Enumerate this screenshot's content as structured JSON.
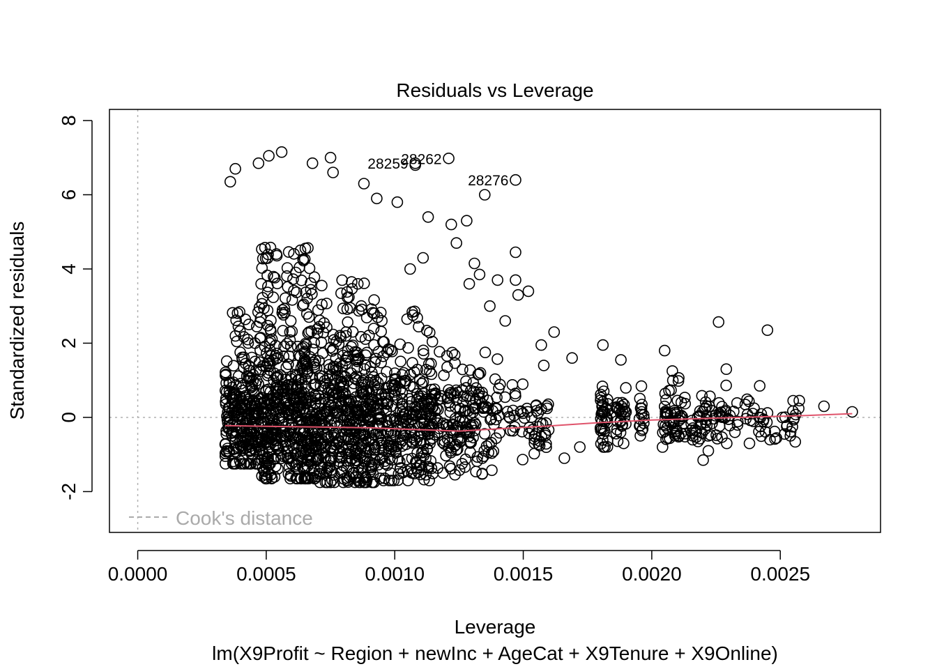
{
  "chart_data": {
    "type": "scatter",
    "title": "Residuals vs Leverage",
    "xlabel": "Leverage",
    "subtitle": "lm(X9Profit ~ Region + newInc + AgeCat + X9Tenure + X9Online)",
    "ylabel": "Standardized residuals",
    "xlim": [
      -0.00011,
      0.00289
    ],
    "ylim": [
      -3.1,
      8.3
    ],
    "x_ticks": [
      0.0,
      0.0005,
      0.001,
      0.0015,
      0.002,
      0.0025
    ],
    "x_tick_labels": [
      "0.0000",
      "0.0005",
      "0.0010",
      "0.0015",
      "0.0020",
      "0.0025"
    ],
    "y_ticks": [
      -2,
      0,
      2,
      4,
      6,
      8
    ],
    "y_tick_labels": [
      "-2",
      "0",
      "2",
      "4",
      "6",
      "8"
    ],
    "legend": {
      "label": "Cook's distance",
      "position": "bottom-left",
      "color": "#aaaaaa"
    },
    "reference_lines": {
      "h_zero": 0,
      "v_zero": 0,
      "color": "#b0b0b0"
    },
    "smooth_color": "#df536b",
    "point_color": "#000000",
    "smooth": {
      "x": [
        0.00034,
        0.0005,
        0.0007,
        0.0009,
        0.00105,
        0.00125,
        0.0014,
        0.0016,
        0.0018,
        0.002,
        0.0022,
        0.0024,
        0.0026,
        0.00278
      ],
      "y": [
        -0.22,
        -0.24,
        -0.26,
        -0.28,
        -0.32,
        -0.37,
        -0.31,
        -0.23,
        -0.14,
        -0.07,
        -0.03,
        0.01,
        0.05,
        0.1
      ]
    },
    "labeled_points": [
      {
        "label": "28262",
        "x": 0.00121,
        "y": 6.98
      },
      {
        "label": "28259",
        "x": 0.00108,
        "y": 6.85
      },
      {
        "label": "28276",
        "x": 0.00147,
        "y": 6.4
      }
    ],
    "outlier_points": {
      "x": [
        0.00038,
        0.00036,
        0.00047,
        0.00051,
        0.00056,
        0.00068,
        0.00075,
        0.00076,
        0.00088,
        0.00093,
        0.00101,
        0.00108,
        0.00113,
        0.00122,
        0.00128,
        0.00135,
        0.00147,
        0.00148,
        0.00152,
        0.00147,
        0.00162,
        0.00169,
        0.00181,
        0.00188,
        0.00205,
        0.00208,
        0.00226,
        0.00229,
        0.00245,
        0.00137,
        0.0014,
        0.00143,
        0.00131,
        0.00133,
        0.00157,
        0.00158,
        0.00172,
        0.00166,
        0.0022,
        0.00242,
        0.00255,
        0.00267,
        0.00246,
        0.00238,
        0.00222,
        0.00218,
        0.00278,
        0.00124,
        0.00129,
        0.00111,
        0.00106
      ],
      "y": [
        6.7,
        6.35,
        6.85,
        7.05,
        7.15,
        6.85,
        7.0,
        6.6,
        6.3,
        5.9,
        5.8,
        6.8,
        5.4,
        5.2,
        5.3,
        6.0,
        4.45,
        3.3,
        3.4,
        3.7,
        2.3,
        1.6,
        1.95,
        1.55,
        1.8,
        1.25,
        2.57,
        1.3,
        2.35,
        3.0,
        3.7,
        2.6,
        4.15,
        3.85,
        1.95,
        1.4,
        -0.8,
        -1.1,
        -1.15,
        0.85,
        0.45,
        0.3,
        -0.6,
        -0.7,
        -0.9,
        -0.65,
        0.15,
        4.7,
        3.6,
        4.3,
        4.0
      ]
    },
    "dense_clusters": [
      {
        "x_range": [
          0.00034,
          0.00048
        ],
        "y_range": [
          -1.25,
          3.0
        ],
        "count": 260
      },
      {
        "x_range": [
          0.00048,
          0.0007
        ],
        "y_range": [
          -1.65,
          4.6
        ],
        "count": 520
      },
      {
        "x_range": [
          0.0007,
          0.00092
        ],
        "y_range": [
          -1.75,
          3.9
        ],
        "count": 440
      },
      {
        "x_range": [
          0.00092,
          0.00115
        ],
        "y_range": [
          -1.7,
          2.9
        ],
        "count": 300
      },
      {
        "x_range": [
          0.00115,
          0.0014
        ],
        "y_range": [
          -1.6,
          1.8
        ],
        "count": 170
      },
      {
        "x_range": [
          0.0014,
          0.0016
        ],
        "y_range": [
          -1.3,
          0.9
        ],
        "count": 55
      },
      {
        "x_range": [
          0.0018,
          0.00183
        ],
        "y_range": [
          -0.8,
          1.2
        ],
        "count": 40
      },
      {
        "x_range": [
          0.00186,
          0.0019
        ],
        "y_range": [
          -0.7,
          0.8
        ],
        "count": 28
      },
      {
        "x_range": [
          0.00195,
          0.00197
        ],
        "y_range": [
          -0.5,
          1.0
        ],
        "count": 16
      },
      {
        "x_range": [
          0.00204,
          0.00213
        ],
        "y_range": [
          -0.8,
          1.1
        ],
        "count": 55
      },
      {
        "x_range": [
          0.00215,
          0.0023
        ],
        "y_range": [
          -0.7,
          0.9
        ],
        "count": 55
      },
      {
        "x_range": [
          0.0023,
          0.00258
        ],
        "y_range": [
          -0.8,
          0.5
        ],
        "count": 45
      }
    ]
  }
}
